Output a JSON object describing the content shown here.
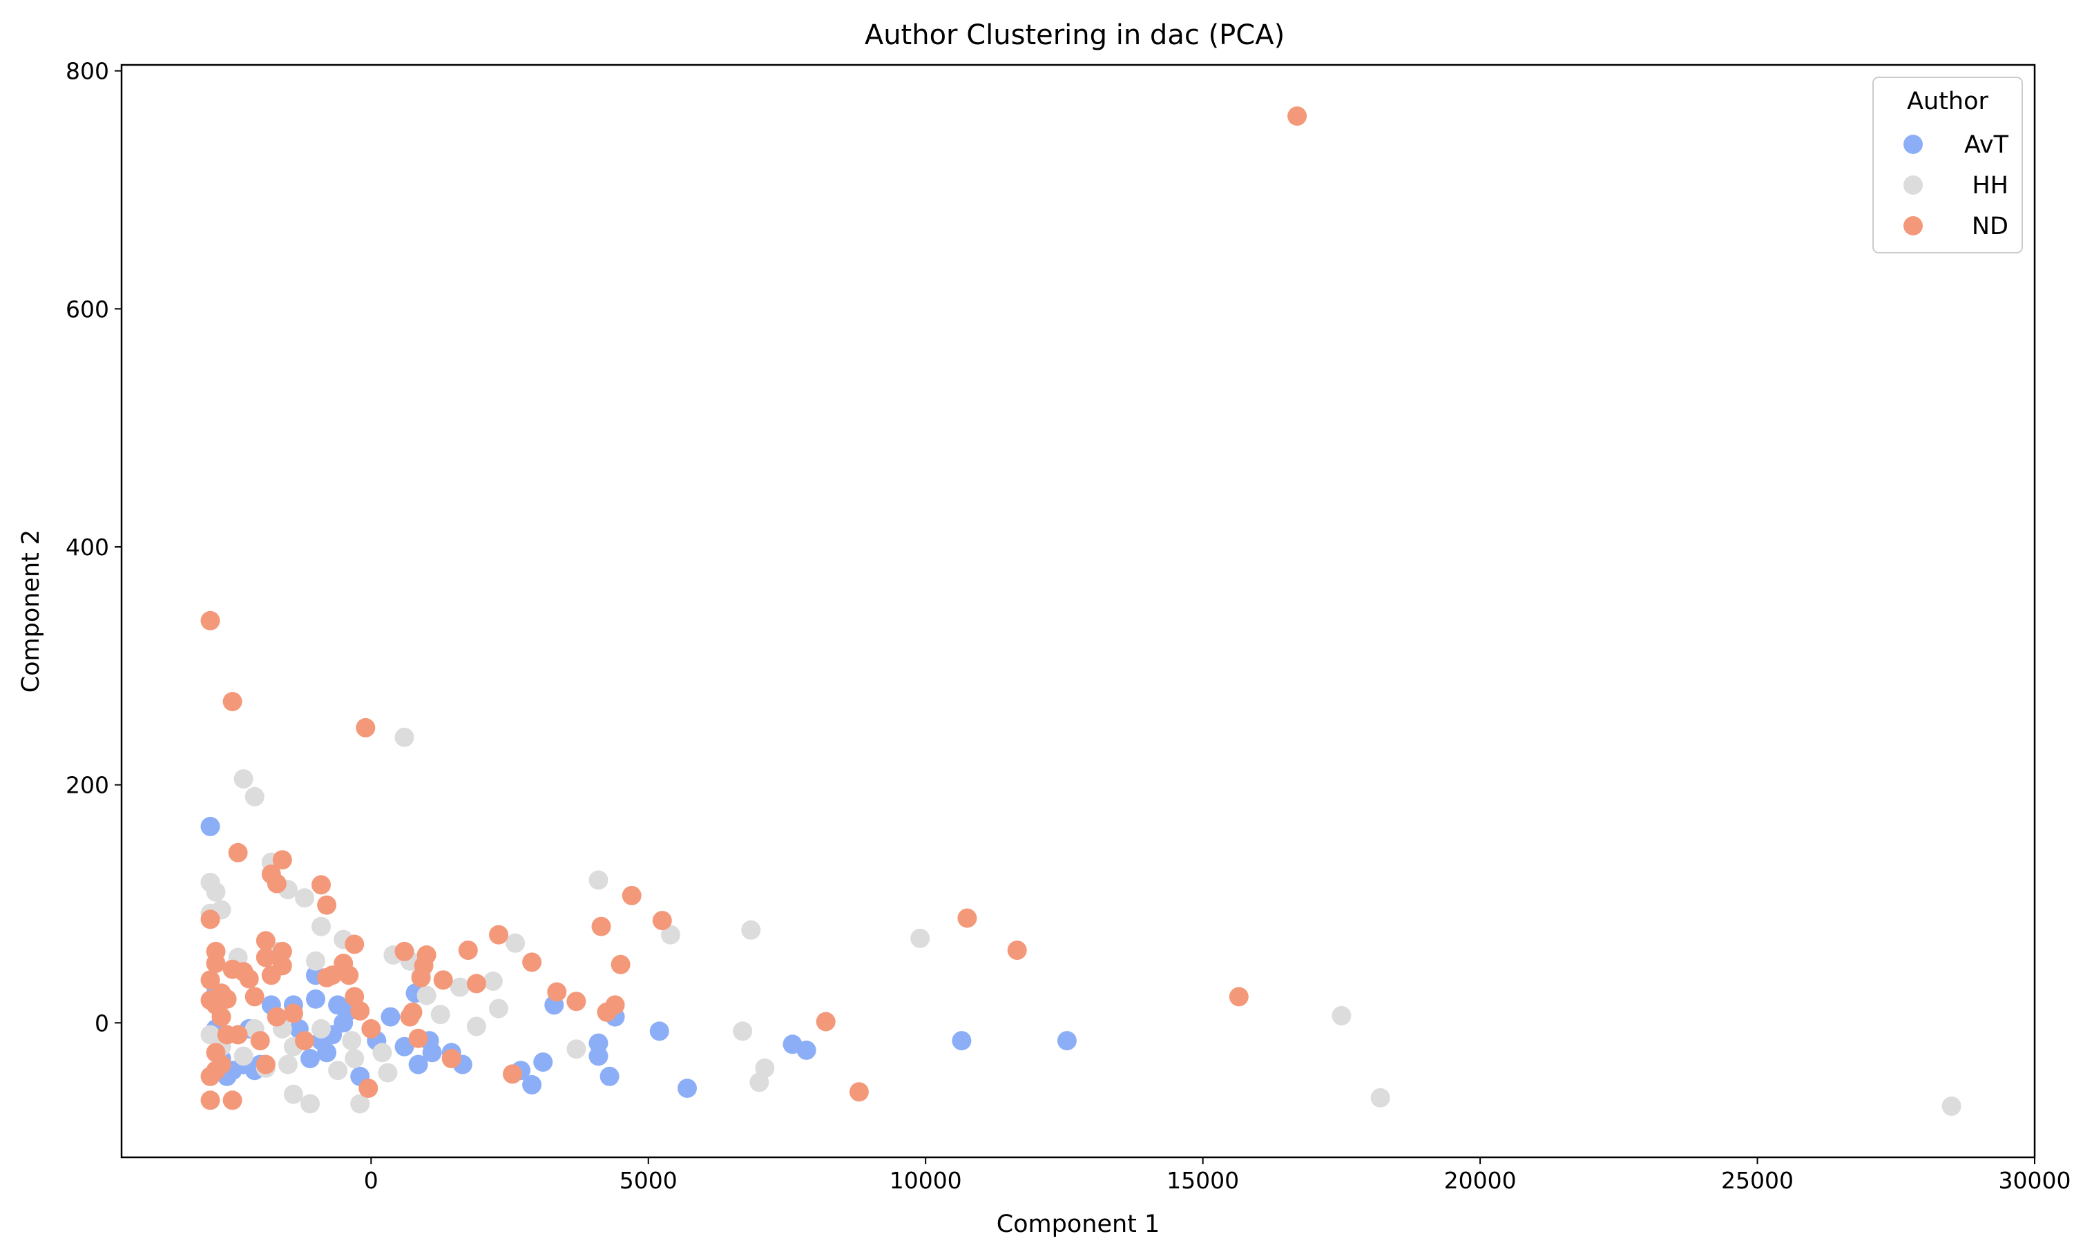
{
  "chart_data": {
    "type": "scatter",
    "title": "Author Clustering in dac (PCA)",
    "xlabel": "Component 1",
    "ylabel": "Component 2",
    "xlim": [
      -4500,
      30000
    ],
    "ylim": [
      -113,
      805
    ],
    "xticks": [
      0,
      5000,
      10000,
      15000,
      20000,
      25000,
      30000
    ],
    "yticks": [
      0,
      200,
      400,
      600,
      800
    ],
    "grid": false,
    "legend": {
      "title": "Author",
      "position": "top-right"
    },
    "series": [
      {
        "name": "AvT",
        "color": "#8caef7",
        "points": [
          [
            -2900,
            165
          ],
          [
            -2800,
            25
          ],
          [
            -2800,
            -5
          ],
          [
            -2700,
            -30
          ],
          [
            -2600,
            -45
          ],
          [
            -2500,
            -40
          ],
          [
            -2300,
            -35
          ],
          [
            -2200,
            -5
          ],
          [
            -2100,
            -40
          ],
          [
            -2000,
            -35
          ],
          [
            -1800,
            15
          ],
          [
            -1700,
            5
          ],
          [
            -1400,
            15
          ],
          [
            -1300,
            -5
          ],
          [
            -1100,
            -30
          ],
          [
            -1000,
            40
          ],
          [
            -1000,
            20
          ],
          [
            -900,
            -15
          ],
          [
            -800,
            -25
          ],
          [
            -700,
            -10
          ],
          [
            -600,
            15
          ],
          [
            -500,
            0
          ],
          [
            -400,
            10
          ],
          [
            -200,
            -45
          ],
          [
            100,
            -15
          ],
          [
            350,
            5
          ],
          [
            600,
            -20
          ],
          [
            800,
            25
          ],
          [
            850,
            -35
          ],
          [
            1050,
            -15
          ],
          [
            1100,
            -25
          ],
          [
            1450,
            -25
          ],
          [
            1650,
            -35
          ],
          [
            2700,
            -40
          ],
          [
            2900,
            -52
          ],
          [
            3100,
            -33
          ],
          [
            3300,
            15
          ],
          [
            4100,
            -28
          ],
          [
            4100,
            -17
          ],
          [
            4300,
            -45
          ],
          [
            4400,
            5
          ],
          [
            5200,
            -7
          ],
          [
            5700,
            -55
          ],
          [
            7600,
            -18
          ],
          [
            7850,
            -23
          ],
          [
            10650,
            -15
          ],
          [
            12550,
            -15
          ]
        ]
      },
      {
        "name": "HH",
        "color": "#dcdcdc",
        "points": [
          [
            -2900,
            118
          ],
          [
            -2900,
            92
          ],
          [
            -2800,
            110
          ],
          [
            -2700,
            95
          ],
          [
            -2900,
            -10
          ],
          [
            -2700,
            -20
          ],
          [
            -2400,
            55
          ],
          [
            -2300,
            205
          ],
          [
            -2100,
            190
          ],
          [
            -2300,
            -28
          ],
          [
            -2100,
            -5
          ],
          [
            -1900,
            -38
          ],
          [
            -1700,
            60
          ],
          [
            -1800,
            135
          ],
          [
            -1600,
            -5
          ],
          [
            -1500,
            -35
          ],
          [
            -1400,
            -60
          ],
          [
            -1200,
            105
          ],
          [
            -1500,
            112
          ],
          [
            -1400,
            -20
          ],
          [
            -1100,
            -68
          ],
          [
            -1000,
            52
          ],
          [
            -900,
            81
          ],
          [
            -900,
            -5
          ],
          [
            -600,
            -40
          ],
          [
            -500,
            70
          ],
          [
            -300,
            -30
          ],
          [
            -200,
            -68
          ],
          [
            -350,
            -15
          ],
          [
            200,
            -25
          ],
          [
            300,
            -42
          ],
          [
            400,
            57
          ],
          [
            600,
            240
          ],
          [
            700,
            52
          ],
          [
            900,
            40
          ],
          [
            1000,
            23
          ],
          [
            1250,
            7
          ],
          [
            1600,
            30
          ],
          [
            1900,
            -3
          ],
          [
            2200,
            35
          ],
          [
            2300,
            12
          ],
          [
            2600,
            67
          ],
          [
            3700,
            -22
          ],
          [
            4100,
            120
          ],
          [
            5400,
            74
          ],
          [
            6700,
            -7
          ],
          [
            6850,
            78
          ],
          [
            7000,
            -50
          ],
          [
            7100,
            -38
          ],
          [
            9900,
            71
          ],
          [
            17500,
            6
          ],
          [
            18200,
            -63
          ],
          [
            28500,
            -70
          ]
        ]
      },
      {
        "name": "ND",
        "color": "#f4987a",
        "points": [
          [
            -2900,
            338
          ],
          [
            -2500,
            270
          ],
          [
            -2400,
            143
          ],
          [
            -2900,
            87
          ],
          [
            -2800,
            60
          ],
          [
            -2800,
            50
          ],
          [
            -2900,
            36
          ],
          [
            -2900,
            19
          ],
          [
            -2800,
            15
          ],
          [
            -2700,
            25
          ],
          [
            -2600,
            20
          ],
          [
            -2700,
            5
          ],
          [
            -2500,
            45
          ],
          [
            -2600,
            -10
          ],
          [
            -2800,
            -25
          ],
          [
            -2700,
            -35
          ],
          [
            -2800,
            -40
          ],
          [
            -2900,
            -45
          ],
          [
            -2900,
            -65
          ],
          [
            -2500,
            -65
          ],
          [
            -2400,
            -10
          ],
          [
            -2300,
            43
          ],
          [
            -2200,
            37
          ],
          [
            -2100,
            22
          ],
          [
            -2000,
            -15
          ],
          [
            -1900,
            69
          ],
          [
            -1900,
            55
          ],
          [
            -1800,
            40
          ],
          [
            -1800,
            125
          ],
          [
            -1700,
            117
          ],
          [
            -1600,
            137
          ],
          [
            -1600,
            60
          ],
          [
            -1600,
            48
          ],
          [
            -1700,
            5
          ],
          [
            -1900,
            -35
          ],
          [
            -1400,
            8
          ],
          [
            -1200,
            -15
          ],
          [
            -900,
            116
          ],
          [
            -800,
            99
          ],
          [
            -800,
            38
          ],
          [
            -700,
            40
          ],
          [
            -500,
            50
          ],
          [
            -400,
            40
          ],
          [
            -300,
            66
          ],
          [
            -300,
            22
          ],
          [
            -200,
            10
          ],
          [
            -100,
            248
          ],
          [
            0,
            -5
          ],
          [
            -50,
            -55
          ],
          [
            600,
            60
          ],
          [
            700,
            5
          ],
          [
            750,
            9
          ],
          [
            850,
            -13
          ],
          [
            900,
            38
          ],
          [
            950,
            48
          ],
          [
            1000,
            57
          ],
          [
            1300,
            36
          ],
          [
            1450,
            -30
          ],
          [
            1750,
            61
          ],
          [
            1900,
            33
          ],
          [
            2300,
            74
          ],
          [
            2550,
            -43
          ],
          [
            2900,
            51
          ],
          [
            3350,
            26
          ],
          [
            3700,
            18
          ],
          [
            4150,
            81
          ],
          [
            4250,
            9
          ],
          [
            4400,
            15
          ],
          [
            4500,
            49
          ],
          [
            4700,
            107
          ],
          [
            5250,
            86
          ],
          [
            8200,
            1
          ],
          [
            8800,
            -58
          ],
          [
            10750,
            88
          ],
          [
            11650,
            61
          ],
          [
            15650,
            22
          ],
          [
            16700,
            762
          ]
        ]
      }
    ]
  }
}
